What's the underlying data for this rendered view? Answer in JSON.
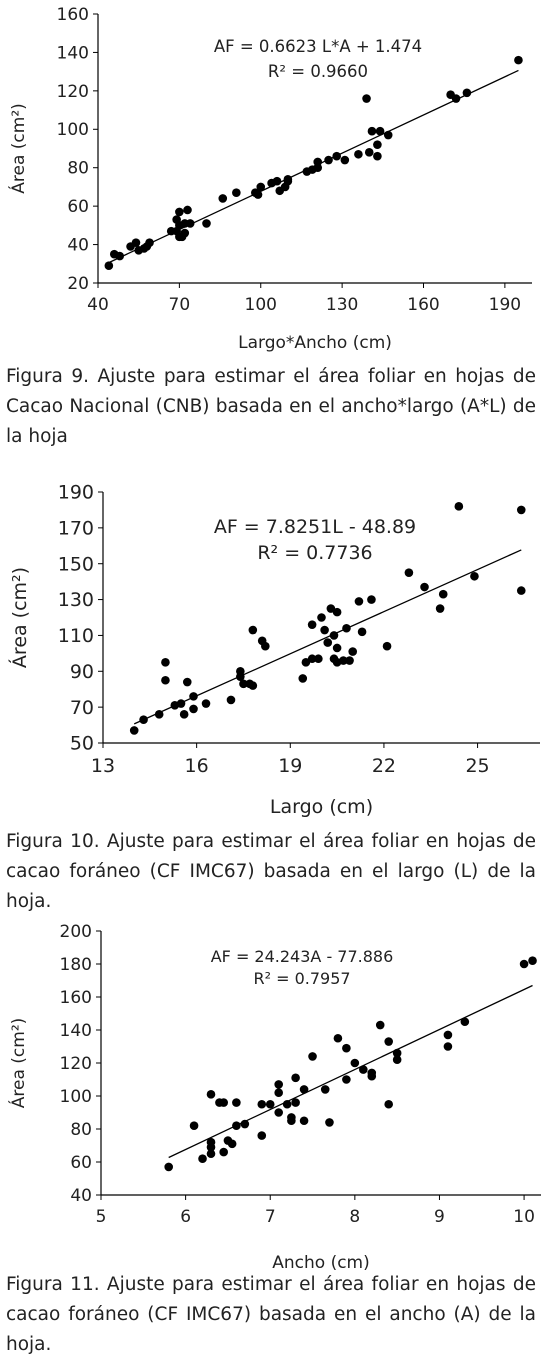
{
  "chart_data": [
    {
      "type": "scatter",
      "xlabel": "Largo*Ancho (cm)",
      "ylabel": "Área (cm²)",
      "xlim": [
        40,
        200
      ],
      "ylim": [
        20,
        160
      ],
      "xticks": [
        40,
        70,
        100,
        130,
        160,
        190
      ],
      "yticks": [
        20,
        40,
        60,
        80,
        100,
        120,
        140,
        160
      ],
      "equation": "AF = 0.6623 L*A + 1.474",
      "r2": "R² = 0.9660",
      "trendline": {
        "slope": 0.6623,
        "intercept": 1.474,
        "x_range": [
          44,
          195
        ]
      },
      "points": [
        [
          44,
          29
        ],
        [
          46,
          35
        ],
        [
          48,
          34
        ],
        [
          52,
          39
        ],
        [
          54,
          41
        ],
        [
          55,
          37
        ],
        [
          57,
          38
        ],
        [
          58,
          39
        ],
        [
          59,
          41
        ],
        [
          67,
          47
        ],
        [
          69,
          53
        ],
        [
          69,
          47
        ],
        [
          70,
          44
        ],
        [
          70,
          50
        ],
        [
          70,
          57
        ],
        [
          71,
          44
        ],
        [
          72,
          46
        ],
        [
          72,
          51
        ],
        [
          73,
          58
        ],
        [
          74,
          51
        ],
        [
          80,
          51
        ],
        [
          86,
          64
        ],
        [
          91,
          67
        ],
        [
          98,
          67
        ],
        [
          99,
          66
        ],
        [
          100,
          70
        ],
        [
          104,
          72
        ],
        [
          106,
          73
        ],
        [
          107,
          68
        ],
        [
          109,
          70
        ],
        [
          110,
          74
        ],
        [
          110,
          73
        ],
        [
          117,
          78
        ],
        [
          119,
          79
        ],
        [
          121,
          80
        ],
        [
          121,
          83
        ],
        [
          125,
          84
        ],
        [
          128,
          86
        ],
        [
          131,
          84
        ],
        [
          136,
          87
        ],
        [
          139,
          116
        ],
        [
          140,
          88
        ],
        [
          141,
          99
        ],
        [
          143,
          86
        ],
        [
          143,
          92
        ],
        [
          144,
          99
        ],
        [
          147,
          97
        ],
        [
          170,
          118
        ],
        [
          172,
          116
        ],
        [
          176,
          119
        ],
        [
          195,
          136
        ]
      ]
    },
    {
      "type": "scatter",
      "xlabel": "Largo (cm)",
      "ylabel": "Área (cm²)",
      "xlim": [
        13,
        27
      ],
      "ylim": [
        50,
        190
      ],
      "xticks": [
        13,
        16,
        19,
        22,
        25
      ],
      "yticks": [
        50,
        70,
        90,
        110,
        130,
        150,
        170,
        190
      ],
      "equation": "AF = 7.8251L - 48.89",
      "r2": "R² = 0.7736",
      "trendline": {
        "slope": 7.8251,
        "intercept": -48.89,
        "x_range": [
          14,
          26.4
        ]
      },
      "points": [
        [
          14.0,
          57
        ],
        [
          14.3,
          63
        ],
        [
          14.8,
          66
        ],
        [
          15.0,
          95
        ],
        [
          15.0,
          85
        ],
        [
          15.3,
          71
        ],
        [
          15.5,
          72
        ],
        [
          15.6,
          66
        ],
        [
          15.7,
          84
        ],
        [
          15.9,
          76
        ],
        [
          15.9,
          69
        ],
        [
          16.3,
          72
        ],
        [
          17.1,
          74
        ],
        [
          17.4,
          90
        ],
        [
          17.4,
          87
        ],
        [
          17.5,
          83
        ],
        [
          17.7,
          83
        ],
        [
          17.8,
          82
        ],
        [
          17.8,
          113
        ],
        [
          18.1,
          107
        ],
        [
          18.2,
          104
        ],
        [
          19.4,
          86
        ],
        [
          19.5,
          95
        ],
        [
          19.7,
          97
        ],
        [
          19.7,
          116
        ],
        [
          19.9,
          97
        ],
        [
          20.0,
          120
        ],
        [
          20.1,
          113
        ],
        [
          20.2,
          106
        ],
        [
          20.3,
          125
        ],
        [
          20.4,
          97
        ],
        [
          20.4,
          110
        ],
        [
          20.5,
          123
        ],
        [
          20.5,
          103
        ],
        [
          20.5,
          95
        ],
        [
          20.7,
          96
        ],
        [
          20.8,
          114
        ],
        [
          20.9,
          96
        ],
        [
          21.0,
          101
        ],
        [
          21.2,
          129
        ],
        [
          21.3,
          112
        ],
        [
          21.6,
          130
        ],
        [
          22.1,
          104
        ],
        [
          22.8,
          145
        ],
        [
          23.3,
          137
        ],
        [
          23.8,
          125
        ],
        [
          23.9,
          133
        ],
        [
          24.4,
          182
        ],
        [
          24.9,
          143
        ],
        [
          26.4,
          180
        ],
        [
          26.4,
          135
        ]
      ]
    },
    {
      "type": "scatter",
      "xlabel": "Ancho (cm)",
      "ylabel": "Área (cm²)",
      "xlim": [
        5,
        10.2
      ],
      "ylim": [
        40,
        200
      ],
      "xticks": [
        5,
        6,
        7,
        8,
        9,
        10
      ],
      "yticks": [
        40,
        60,
        80,
        100,
        120,
        140,
        160,
        180,
        200
      ],
      "equation": "AF = 24.243A - 77.886",
      "r2": "R² = 0.7957",
      "trendline": {
        "slope": 24.243,
        "intercept": -77.886,
        "x_range": [
          5.8,
          10.1
        ]
      },
      "points": [
        [
          5.8,
          57
        ],
        [
          6.1,
          82
        ],
        [
          6.2,
          62
        ],
        [
          6.3,
          101
        ],
        [
          6.3,
          72
        ],
        [
          6.3,
          69
        ],
        [
          6.3,
          65
        ],
        [
          6.4,
          96
        ],
        [
          6.45,
          96
        ],
        [
          6.45,
          66
        ],
        [
          6.5,
          73
        ],
        [
          6.55,
          71
        ],
        [
          6.6,
          96
        ],
        [
          6.6,
          82
        ],
        [
          6.7,
          83
        ],
        [
          6.9,
          95
        ],
        [
          6.9,
          76
        ],
        [
          7.0,
          95
        ],
        [
          7.1,
          107
        ],
        [
          7.1,
          102
        ],
        [
          7.1,
          90
        ],
        [
          7.2,
          95
        ],
        [
          7.25,
          87
        ],
        [
          7.25,
          85
        ],
        [
          7.3,
          96
        ],
        [
          7.3,
          111
        ],
        [
          7.4,
          104
        ],
        [
          7.4,
          85
        ],
        [
          7.5,
          124
        ],
        [
          7.65,
          104
        ],
        [
          7.7,
          84
        ],
        [
          7.8,
          135
        ],
        [
          7.9,
          129
        ],
        [
          7.9,
          110
        ],
        [
          8.0,
          120
        ],
        [
          8.1,
          116
        ],
        [
          8.2,
          114
        ],
        [
          8.2,
          112
        ],
        [
          8.3,
          143
        ],
        [
          8.4,
          133
        ],
        [
          8.4,
          95
        ],
        [
          8.5,
          126
        ],
        [
          8.5,
          122
        ],
        [
          9.1,
          137
        ],
        [
          9.1,
          130
        ],
        [
          9.3,
          145
        ],
        [
          10.0,
          180
        ],
        [
          10.1,
          182
        ]
      ]
    }
  ],
  "captions": [
    "Figura 9. Ajuste para estimar el área foliar en hojas de Cacao Nacional (CNB) basada en el ancho*largo (A*L) de la hoja",
    "Figura 10. Ajuste para estimar el área foliar en hojas de cacao foráneo (CF IMC67) basada en el largo (L) de la hoja.",
    "Figura 11. Ajuste para estimar el área foliar en hojas de cacao foráneo (CF IMC67) basada en el ancho (A) de la hoja."
  ]
}
